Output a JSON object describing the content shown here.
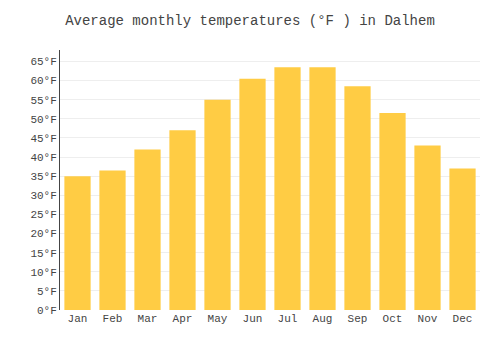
{
  "chart_data": {
    "type": "bar",
    "title": "Average monthly temperatures (°F ) in Dalhem",
    "categories": [
      "Jan",
      "Feb",
      "Mar",
      "Apr",
      "May",
      "Jun",
      "Jul",
      "Aug",
      "Sep",
      "Oct",
      "Nov",
      "Dec"
    ],
    "values": [
      35,
      36.5,
      42,
      47,
      55,
      60.5,
      63.5,
      63.5,
      58.5,
      51.5,
      43,
      37
    ],
    "color": "#FFCC44",
    "ylim": [
      0,
      68
    ],
    "yticks": [
      {
        "value": 0,
        "label": "0°F"
      },
      {
        "value": 5,
        "label": "5°F"
      },
      {
        "value": 10,
        "label": "10°F"
      },
      {
        "value": 15,
        "label": "15°F"
      },
      {
        "value": 20,
        "label": "20°F"
      },
      {
        "value": 25,
        "label": "25°F"
      },
      {
        "value": 30,
        "label": "30°F"
      },
      {
        "value": 35,
        "label": "35°F"
      },
      {
        "value": 40,
        "label": "40°F"
      },
      {
        "value": 45,
        "label": "45°F"
      },
      {
        "value": 50,
        "label": "50°F"
      },
      {
        "value": 55,
        "label": "55°F"
      },
      {
        "value": 60,
        "label": "60°F"
      },
      {
        "value": 65,
        "label": "65°F"
      }
    ],
    "grid": true
  }
}
